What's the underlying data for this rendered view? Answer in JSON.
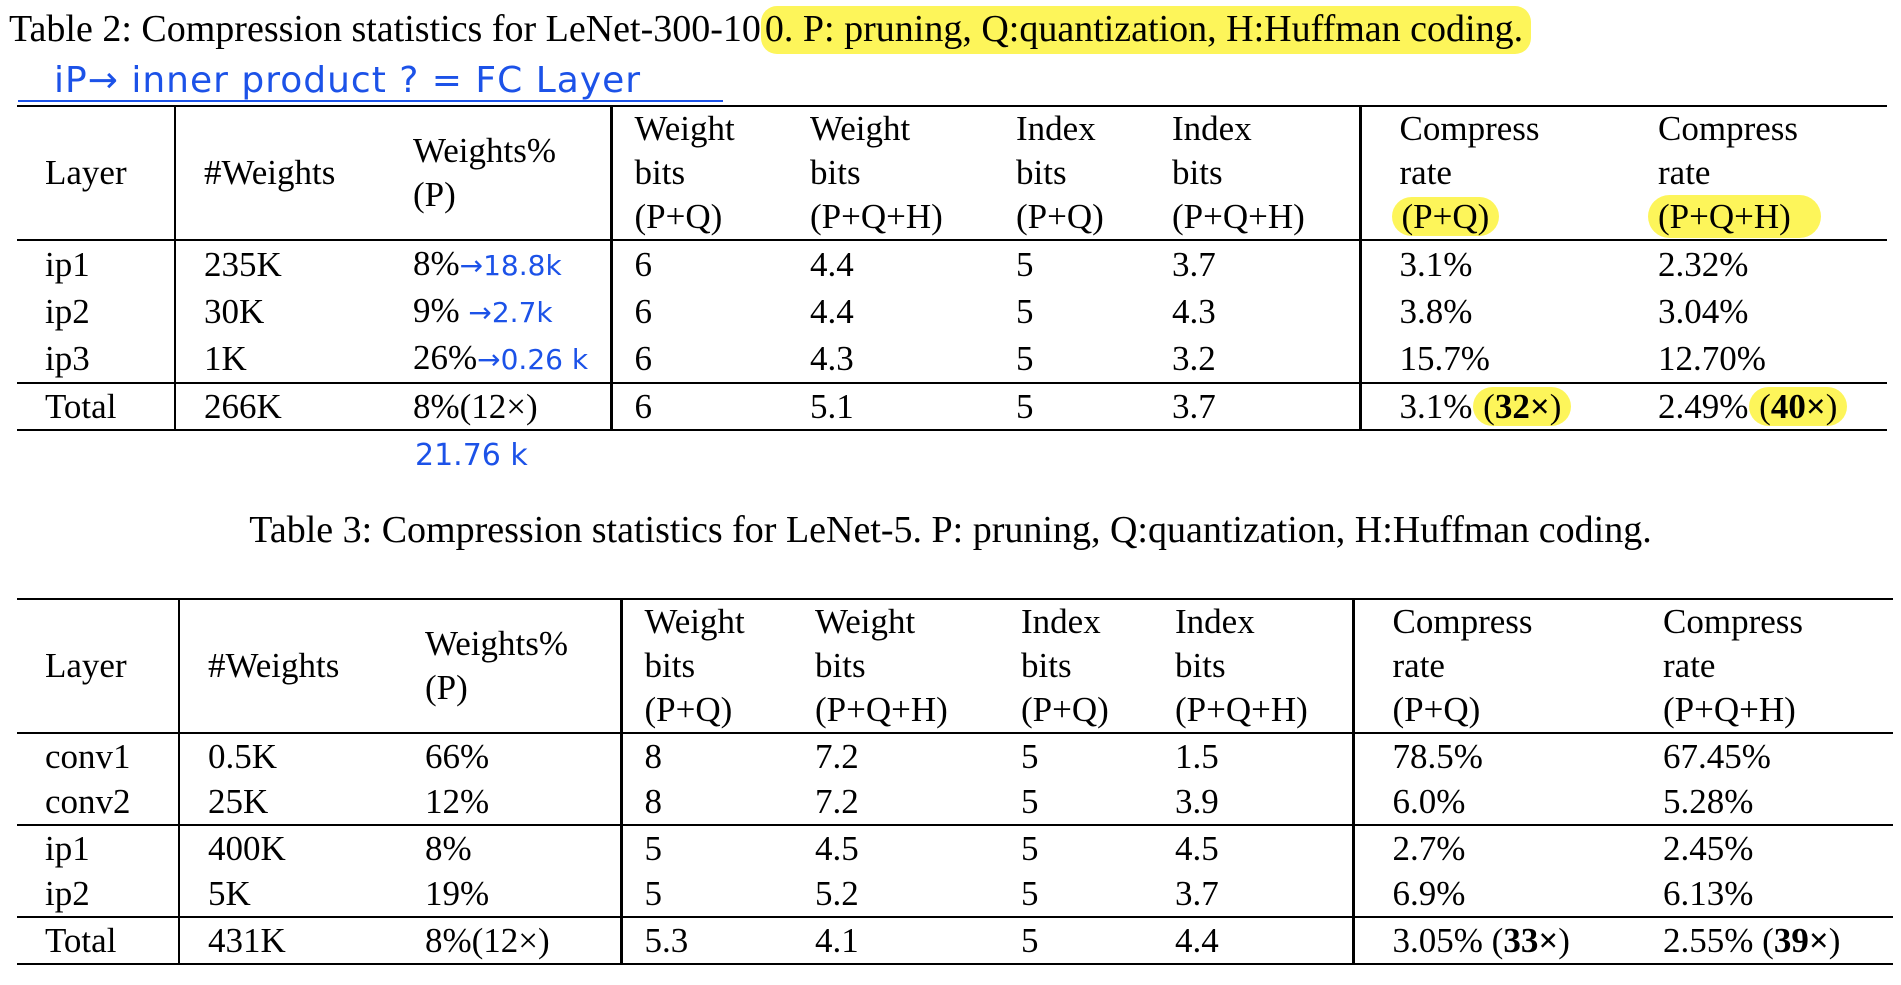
{
  "table2": {
    "caption_prefix": "Table 2: Compression statistics for LeNet-300-10",
    "caption_highlight": "0. P: pruning, Q:quantization, H:Huffman coding.",
    "headers": {
      "layer": "Layer",
      "weights": "#Weights",
      "weights_pct": [
        "Weights%",
        "(P)"
      ],
      "weight_bits_pq": [
        "Weight",
        "bits",
        "(P+Q)"
      ],
      "weight_bits_pqh": [
        "Weight",
        "bits",
        "(P+Q+H)"
      ],
      "index_bits_pq": [
        "Index",
        "bits",
        "(P+Q)"
      ],
      "index_bits_pqh": [
        "Index",
        "bits",
        "(P+Q+H)"
      ],
      "compress_pq": [
        "Compress",
        "rate",
        "(P+Q)"
      ],
      "compress_pqh": [
        "Compress",
        "rate",
        "(P+Q+H)"
      ]
    },
    "rows": [
      {
        "layer": "ip1",
        "weights": "235K",
        "pct": "8%",
        "wpq": "6",
        "wpqh": "4.4",
        "ipq": "5",
        "ipqh": "3.7",
        "cpq": "3.1%",
        "cpqh": "2.32%"
      },
      {
        "layer": "ip2",
        "weights": "30K",
        "pct": "9%",
        "wpq": "6",
        "wpqh": "4.4",
        "ipq": "5",
        "ipqh": "4.3",
        "cpq": "3.8%",
        "cpqh": "3.04%"
      },
      {
        "layer": "ip3",
        "weights": "1K",
        "pct": "26%",
        "wpq": "6",
        "wpqh": "4.3",
        "ipq": "5",
        "ipqh": "3.2",
        "cpq": "15.7%",
        "cpqh": "12.70%"
      }
    ],
    "total": {
      "layer": "Total",
      "weights": "266K",
      "pct": "8%(12×)",
      "wpq": "6",
      "wpqh": "5.1",
      "ipq": "5",
      "ipqh": "3.7",
      "cpq": "3.1%",
      "cpq_x": "32×",
      "cpqh": "2.49%",
      "cpqh_x": "40×"
    }
  },
  "annotations": {
    "header_note": "iP→ inner product ? = FC Layer",
    "ip1_note": "→18.8k",
    "ip2_note": "→2.7k",
    "ip3_note": "→0.26 k",
    "total_note": "21.76 k"
  },
  "table3": {
    "caption": "Table 3: Compression statistics for LeNet-5. P: pruning, Q:quantization, H:Huffman coding.",
    "rows": [
      {
        "layer": "conv1",
        "weights": "0.5K",
        "pct": "66%",
        "wpq": "8",
        "wpqh": "7.2",
        "ipq": "5",
        "ipqh": "1.5",
        "cpq": "78.5%",
        "cpqh": "67.45%"
      },
      {
        "layer": "conv2",
        "weights": "25K",
        "pct": "12%",
        "wpq": "8",
        "wpqh": "7.2",
        "ipq": "5",
        "ipqh": "3.9",
        "cpq": "6.0%",
        "cpqh": "5.28%"
      },
      {
        "layer": "ip1",
        "weights": "400K",
        "pct": "8%",
        "wpq": "5",
        "wpqh": "4.5",
        "ipq": "5",
        "ipqh": "4.5",
        "cpq": "2.7%",
        "cpqh": "2.45%"
      },
      {
        "layer": "ip2",
        "weights": "5K",
        "pct": "19%",
        "wpq": "5",
        "wpqh": "5.2",
        "ipq": "5",
        "ipqh": "3.7",
        "cpq": "6.9%",
        "cpqh": "6.13%"
      }
    ],
    "total": {
      "layer": "Total",
      "weights": "431K",
      "pct": "8%(12×)",
      "wpq": "5.3",
      "wpqh": "4.1",
      "ipq": "5",
      "ipqh": "4.4",
      "cpq": "3.05%",
      "cpq_x": "33×",
      "cpqh": "2.55%",
      "cpqh_x": "39×"
    }
  },
  "colors": {
    "highlight": "#fdf55a",
    "ink": "#1c52e8"
  }
}
